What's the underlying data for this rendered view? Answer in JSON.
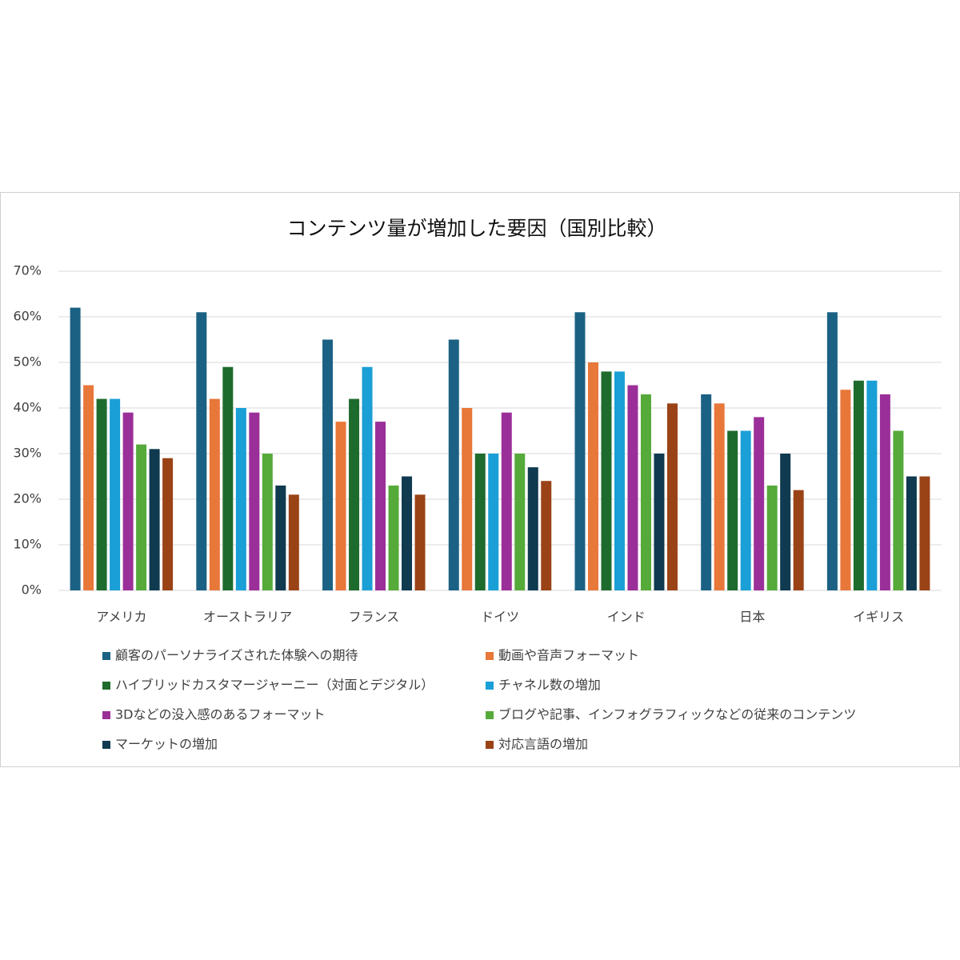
{
  "chart_data": {
    "type": "bar",
    "title": "コンテンツ量が増加した要因（国別比較）",
    "categories": [
      "アメリカ",
      "オーストラリア",
      "フランス",
      "ドイツ",
      "インド",
      "日本",
      "イギリス"
    ],
    "series": [
      {
        "name": "顧客のパーソナライズされた体験への期待",
        "color": "#1b6184",
        "values": [
          62,
          61,
          55,
          55,
          61,
          43,
          61
        ]
      },
      {
        "name": "動画や音声フォーマット",
        "color": "#e8773a",
        "values": [
          45,
          42,
          37,
          40,
          50,
          41,
          44
        ]
      },
      {
        "name": "ハイブリッドカスタマージャーニー（対面とデジタル）",
        "color": "#1e6b2e",
        "values": [
          42,
          49,
          42,
          30,
          48,
          35,
          46
        ]
      },
      {
        "name": "チャネル数の増加",
        "color": "#1a9fd6",
        "values": [
          42,
          40,
          49,
          30,
          48,
          35,
          46
        ]
      },
      {
        "name": "3Dなどの没入感のあるフォーマット",
        "color": "#9b2f99",
        "values": [
          39,
          39,
          37,
          39,
          45,
          38,
          43
        ]
      },
      {
        "name": "ブログや記事、インフォグラフィックなどの従来のコンテンツ",
        "color": "#55aa3a",
        "values": [
          32,
          30,
          23,
          30,
          43,
          23,
          35
        ]
      },
      {
        "name": "マーケットの増加",
        "color": "#0f3a4f",
        "values": [
          31,
          23,
          25,
          27,
          30,
          30,
          25
        ]
      },
      {
        "name": "対応言語の増加",
        "color": "#9a4317",
        "values": [
          29,
          21,
          21,
          24,
          41,
          22,
          25
        ]
      }
    ],
    "ylim": [
      0,
      70
    ],
    "yticks": [
      {
        "value": 0,
        "label": "0%"
      },
      {
        "value": 10,
        "label": "10%"
      },
      {
        "value": 20,
        "label": "20%"
      },
      {
        "value": 30,
        "label": "30%"
      },
      {
        "value": 40,
        "label": "40%"
      },
      {
        "value": 50,
        "label": "50%"
      },
      {
        "value": 60,
        "label": "60%"
      },
      {
        "value": 70,
        "label": "70%"
      }
    ],
    "grid": true
  }
}
